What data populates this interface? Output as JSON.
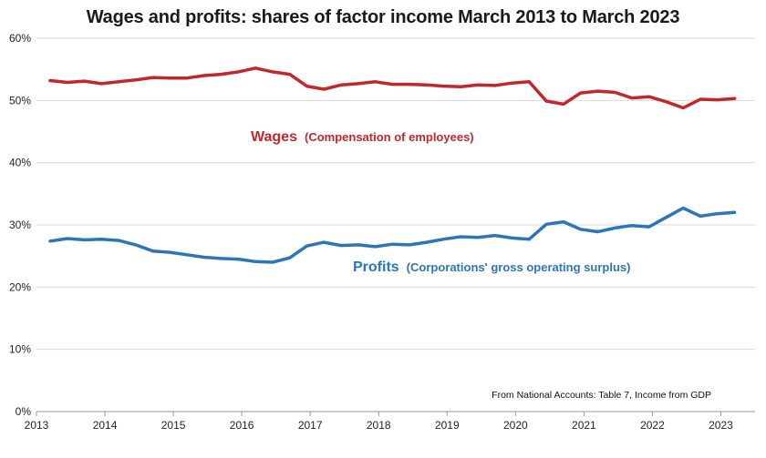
{
  "chart_data": {
    "type": "line",
    "title": "Wages and profits: shares of factor income March 2013 to March 2023",
    "xlabel": "",
    "ylabel": "",
    "xlim": [
      2013.0,
      2023.5
    ],
    "ylim": [
      0,
      60
    ],
    "x_ticks": [
      2013,
      2014,
      2015,
      2016,
      2017,
      2018,
      2019,
      2020,
      2021,
      2022,
      2023
    ],
    "y_ticks": [
      0,
      10,
      20,
      30,
      40,
      50,
      60
    ],
    "y_tick_labels": [
      "0%",
      "10%",
      "20%",
      "30%",
      "40%",
      "50%",
      "60%"
    ],
    "grid": "horizontal",
    "x": [
      2013.2,
      2013.45,
      2013.7,
      2013.95,
      2014.2,
      2014.45,
      2014.7,
      2014.95,
      2015.2,
      2015.45,
      2015.7,
      2015.95,
      2016.2,
      2016.45,
      2016.7,
      2016.95,
      2017.2,
      2017.45,
      2017.7,
      2017.95,
      2018.2,
      2018.45,
      2018.7,
      2018.95,
      2019.2,
      2019.45,
      2019.7,
      2019.95,
      2020.2,
      2020.45,
      2020.7,
      2020.95,
      2021.2,
      2021.45,
      2021.7,
      2021.95,
      2022.2,
      2022.45,
      2022.7,
      2022.95,
      2023.2
    ],
    "series": [
      {
        "name": "Wages",
        "color": "#c1272d",
        "values": [
          53.2,
          52.9,
          53.1,
          52.7,
          53.0,
          53.3,
          53.7,
          53.6,
          53.6,
          54.0,
          54.2,
          54.6,
          55.2,
          54.6,
          54.2,
          52.3,
          51.8,
          52.5,
          52.7,
          53.0,
          52.6,
          52.6,
          52.5,
          52.3,
          52.2,
          52.5,
          52.4,
          52.8,
          53.0,
          49.9,
          49.4,
          51.2,
          51.5,
          51.3,
          50.4,
          50.6,
          49.8,
          48.8,
          50.2,
          50.1,
          50.3
        ]
      },
      {
        "name": "Profits",
        "color": "#2e75b6",
        "values": [
          27.4,
          27.8,
          27.6,
          27.7,
          27.5,
          26.8,
          25.8,
          25.6,
          25.2,
          24.8,
          24.6,
          24.5,
          24.1,
          24.0,
          24.7,
          26.6,
          27.2,
          26.7,
          26.8,
          26.5,
          26.9,
          26.8,
          27.2,
          27.7,
          28.1,
          28.0,
          28.3,
          27.9,
          27.7,
          30.1,
          30.5,
          29.3,
          28.9,
          29.5,
          29.9,
          29.7,
          31.2,
          32.7,
          31.4,
          31.8,
          32.0
        ]
      }
    ],
    "annotations": {
      "wages_label": "Wages",
      "wages_sub": "(Compensation of employees)",
      "profits_label": "Profits",
      "profits_sub": "(Corporations' gross operating surplus)",
      "source": "From National Accounts: Table 7, Income from GDP"
    }
  }
}
